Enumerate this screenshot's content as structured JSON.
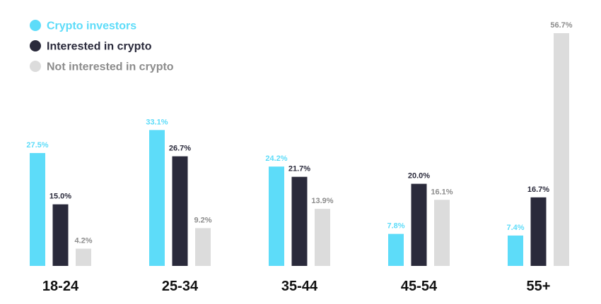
{
  "chart_data": {
    "type": "bar",
    "title": "",
    "xlabel": "",
    "ylabel": "",
    "categories": [
      "18-24",
      "25-34",
      "35-44",
      "45-54",
      "55+"
    ],
    "series": [
      {
        "name": "Crypto investors",
        "color": "#5DDCF9",
        "label_color": "#5DDCF9",
        "values": [
          27.5,
          33.1,
          24.2,
          7.8,
          7.4
        ],
        "labels": [
          "27.5%",
          "33.1%",
          "24.2%",
          "7.8%",
          "7.4%"
        ]
      },
      {
        "name": "Interested in crypto",
        "color": "#2A2A3B",
        "label_color": "#2A2A3B",
        "values": [
          15.0,
          26.7,
          21.7,
          20.0,
          16.7
        ],
        "labels": [
          "15.0%",
          "26.7%",
          "21.7%",
          "20.0%",
          "16.7%"
        ]
      },
      {
        "name": "Not interested in crypto",
        "color": "#DCDCDC",
        "label_color": "#8C8C8C",
        "values": [
          4.2,
          9.2,
          13.9,
          16.1,
          56.7
        ],
        "labels": [
          "4.2%",
          "9.2%",
          "13.9%",
          "16.1%",
          "56.7%"
        ]
      }
    ],
    "ylim": [
      0,
      56.7
    ],
    "grid": false,
    "legend_position": "top-left"
  }
}
